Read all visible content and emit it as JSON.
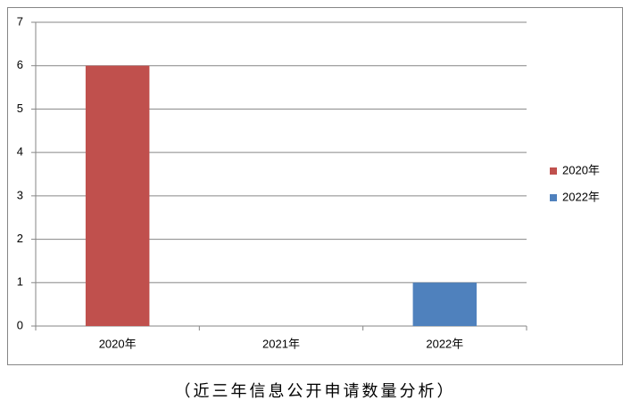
{
  "chart_data": {
    "type": "bar",
    "title": "（近三年信息公开申请数量分析）",
    "categories": [
      "2020年",
      "2021年",
      "2022年"
    ],
    "series": [
      {
        "name": "2020年",
        "color": "#c0504d",
        "values": [
          6,
          null,
          null
        ]
      },
      {
        "name": "2022年",
        "color": "#4f81bd",
        "values": [
          null,
          null,
          1
        ]
      }
    ],
    "ylim": [
      0,
      7
    ],
    "yticks": [
      0,
      1,
      2,
      3,
      4,
      5,
      6,
      7
    ],
    "grid": true,
    "legend": "right"
  }
}
